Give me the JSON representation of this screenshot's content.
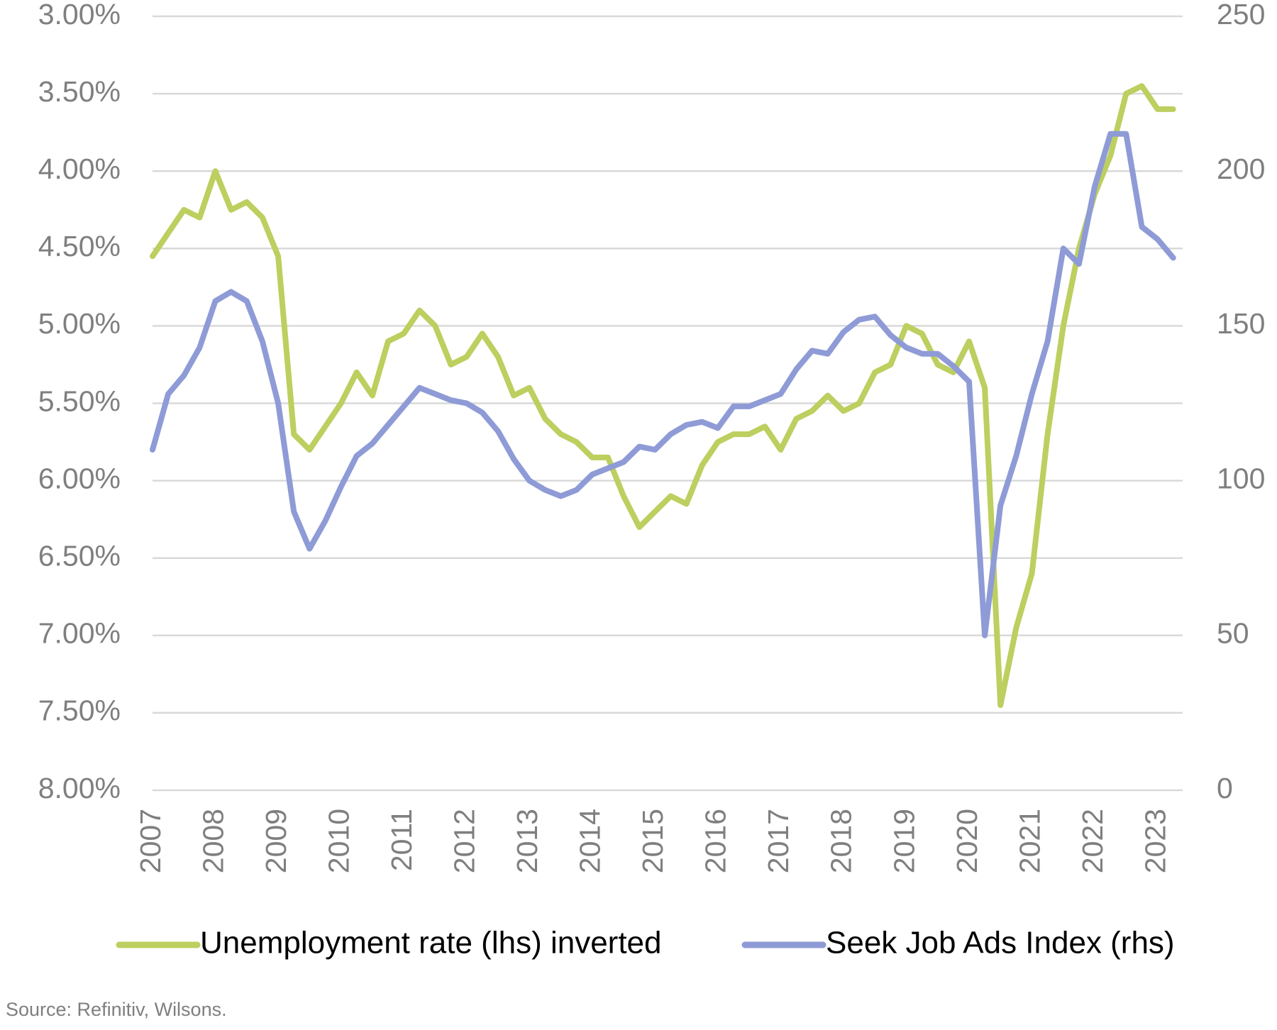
{
  "chart_data": {
    "type": "line",
    "x": [
      2007.0,
      2007.25,
      2007.5,
      2007.75,
      2008.0,
      2008.25,
      2008.5,
      2008.75,
      2009.0,
      2009.25,
      2009.5,
      2009.75,
      2010.0,
      2010.25,
      2010.5,
      2010.75,
      2011.0,
      2011.25,
      2011.5,
      2011.75,
      2012.0,
      2012.25,
      2012.5,
      2012.75,
      2013.0,
      2013.25,
      2013.5,
      2013.75,
      2014.0,
      2014.25,
      2014.5,
      2014.75,
      2015.0,
      2015.25,
      2015.5,
      2015.75,
      2016.0,
      2016.25,
      2016.5,
      2016.75,
      2017.0,
      2017.25,
      2017.5,
      2017.75,
      2018.0,
      2018.25,
      2018.5,
      2018.75,
      2019.0,
      2019.25,
      2019.5,
      2019.75,
      2020.0,
      2020.25,
      2020.5,
      2020.75,
      2021.0,
      2021.25,
      2021.5,
      2021.75,
      2022.0,
      2022.25,
      2022.5,
      2022.75,
      2023.0,
      2023.25
    ],
    "series": [
      {
        "name": "Unemployment rate (lhs) inverted",
        "color": "#bccf5f",
        "axis": "y",
        "values": [
          4.55,
          4.4,
          4.25,
          4.3,
          4.0,
          4.25,
          4.2,
          4.3,
          4.55,
          5.7,
          5.8,
          5.65,
          5.5,
          5.3,
          5.45,
          5.1,
          5.05,
          4.9,
          5.0,
          5.25,
          5.2,
          5.05,
          5.2,
          5.45,
          5.4,
          5.6,
          5.7,
          5.75,
          5.85,
          5.85,
          6.1,
          6.3,
          6.2,
          6.1,
          6.15,
          5.9,
          5.75,
          5.7,
          5.7,
          5.65,
          5.8,
          5.6,
          5.55,
          5.45,
          5.55,
          5.5,
          5.3,
          5.25,
          5.0,
          5.05,
          5.25,
          5.3,
          5.1,
          5.4,
          7.45,
          6.95,
          6.6,
          5.7,
          5.0,
          4.5,
          4.15,
          3.9,
          3.5,
          3.45,
          3.6,
          3.6
        ]
      },
      {
        "name": "Seek Job Ads Index (rhs)",
        "color": "#8e9bd6",
        "axis": "y2",
        "values": [
          110,
          128,
          134,
          143,
          158,
          161,
          158,
          145,
          125,
          90,
          78,
          87,
          98,
          108,
          112,
          118,
          124,
          130,
          128,
          126,
          125,
          122,
          116,
          107,
          100,
          97,
          95,
          97,
          102,
          104,
          106,
          111,
          110,
          115,
          118,
          119,
          117,
          124,
          124,
          126,
          128,
          136,
          142,
          141,
          148,
          152,
          153,
          147,
          143,
          141,
          141,
          137,
          132,
          50,
          92,
          108,
          128,
          145,
          175,
          170,
          195,
          212,
          212,
          182,
          178,
          172
        ]
      }
    ],
    "xlim": [
      2007,
      2023.4
    ],
    "xticks": [
      2007,
      2008,
      2009,
      2010,
      2011,
      2012,
      2013,
      2014,
      2015,
      2016,
      2017,
      2018,
      2019,
      2020,
      2021,
      2022,
      2023
    ],
    "ylim": [
      3,
      8
    ],
    "y_inverted": true,
    "yticks": [
      {
        "value": 3,
        "label": "3.00%"
      },
      {
        "value": 3.5,
        "label": "3.50%"
      },
      {
        "value": 4,
        "label": "4.00%"
      },
      {
        "value": 4.5,
        "label": "4.50%"
      },
      {
        "value": 5,
        "label": "5.00%"
      },
      {
        "value": 5.5,
        "label": "5.50%"
      },
      {
        "value": 6,
        "label": "6.00%"
      },
      {
        "value": 6.5,
        "label": "6.50%"
      },
      {
        "value": 7,
        "label": "7.00%"
      },
      {
        "value": 7.5,
        "label": "7.50%"
      },
      {
        "value": 8,
        "label": "8.00%"
      }
    ],
    "y2lim": [
      0,
      250
    ],
    "y2ticks": [
      0,
      50,
      100,
      150,
      200,
      250
    ],
    "grid": true,
    "legend": "bottom",
    "source": "Source: Refinitiv, Wilsons."
  }
}
